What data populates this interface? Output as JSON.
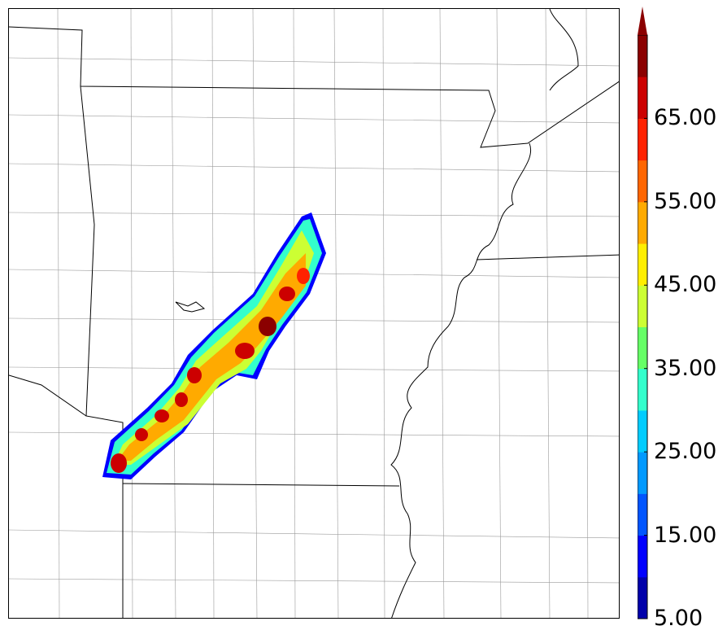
{
  "map": {
    "type": "filled-contour-map",
    "field_units_hint": "",
    "colorbar": {
      "extend": "max",
      "levels": [
        5,
        10,
        15,
        20,
        25,
        30,
        35,
        40,
        45,
        50,
        55,
        60,
        65,
        70
      ],
      "colors": [
        "#0000aa",
        "#0000ff",
        "#0055ff",
        "#0099ff",
        "#00ccff",
        "#33ffcc",
        "#66ff66",
        "#ccff33",
        "#ffee00",
        "#ffaa00",
        "#ff6600",
        "#ff2200",
        "#cc0000",
        "#8b0000"
      ],
      "tick_labels": [
        "5.00",
        "15.00",
        "25.00",
        "35.00",
        "45.00",
        "55.00",
        "65.00"
      ]
    }
  }
}
